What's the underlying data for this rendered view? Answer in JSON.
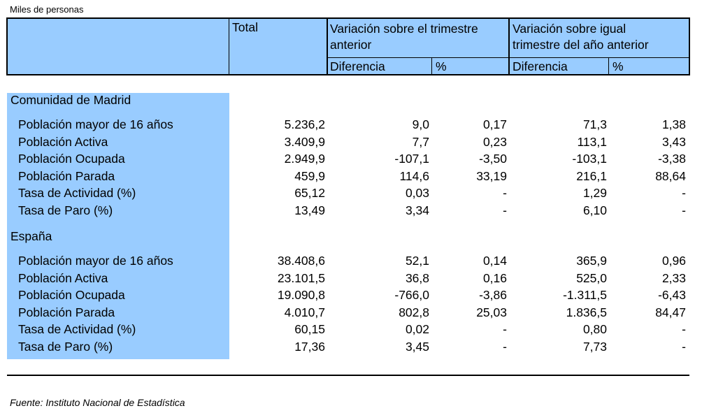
{
  "units_note": "Miles de personas",
  "header": {
    "total": "Total",
    "var_trimestre": "Variación sobre el trimestre anterior",
    "var_trimestre_line1": "Variación sobre el trimestre",
    "var_trimestre_line2": "anterior",
    "var_anual_line1": "Variación sobre igual",
    "var_anual_line2": "trimestre del año anterior",
    "diferencia": "Diferencia",
    "porcentaje": "%"
  },
  "sections": [
    {
      "title": "Comunidad de Madrid",
      "rows": [
        {
          "label": "Población mayor de 16 años",
          "total": "5.236,2",
          "dif_trim": "9,0",
          "pct_trim": "0,17",
          "dif_anual": "71,3",
          "pct_anual": "1,38"
        },
        {
          "label": "Población Activa",
          "total": "3.409,9",
          "dif_trim": "7,7",
          "pct_trim": "0,23",
          "dif_anual": "113,1",
          "pct_anual": "3,43"
        },
        {
          "label": "Población Ocupada",
          "total": "2.949,9",
          "dif_trim": "-107,1",
          "pct_trim": "-3,50",
          "dif_anual": "-103,1",
          "pct_anual": "-3,38"
        },
        {
          "label": "Población Parada",
          "total": "459,9",
          "dif_trim": "114,6",
          "pct_trim": "33,19",
          "dif_anual": "216,1",
          "pct_anual": "88,64"
        },
        {
          "label": "Tasa de Actividad (%)",
          "total": "65,12",
          "dif_trim": "0,03",
          "pct_trim": "-",
          "dif_anual": "1,29",
          "pct_anual": "-"
        },
        {
          "label": "Tasa de Paro (%)",
          "total": "13,49",
          "dif_trim": "3,34",
          "pct_trim": "-",
          "dif_anual": "6,10",
          "pct_anual": "-"
        }
      ]
    },
    {
      "title": "España",
      "rows": [
        {
          "label": "Población mayor de 16 años",
          "total": "38.408,6",
          "dif_trim": "52,1",
          "pct_trim": "0,14",
          "dif_anual": "365,9",
          "pct_anual": "0,96"
        },
        {
          "label": "Población Activa",
          "total": "23.101,5",
          "dif_trim": "36,8",
          "pct_trim": "0,16",
          "dif_anual": "525,0",
          "pct_anual": "2,33"
        },
        {
          "label": "Población Ocupada",
          "total": "19.090,8",
          "dif_trim": "-766,0",
          "pct_trim": "-3,86",
          "dif_anual": "-1.311,5",
          "pct_anual": "-6,43"
        },
        {
          "label": "Población Parada",
          "total": "4.010,7",
          "dif_trim": "802,8",
          "pct_trim": "25,03",
          "dif_anual": "1.836,5",
          "pct_anual": "84,47"
        },
        {
          "label": "Tasa de Actividad (%)",
          "total": "60,15",
          "dif_trim": "0,02",
          "pct_trim": "-",
          "dif_anual": "0,80",
          "pct_anual": "-"
        },
        {
          "label": "Tasa de Paro (%)",
          "total": "17,36",
          "dif_trim": "3,45",
          "pct_trim": "-",
          "dif_anual": "7,73",
          "pct_anual": "-"
        }
      ]
    }
  ],
  "source": "Fuente: Instituto Nacional de Estadística",
  "colors": {
    "highlight": "#99ccff",
    "text": "#000000",
    "background": "#ffffff"
  }
}
